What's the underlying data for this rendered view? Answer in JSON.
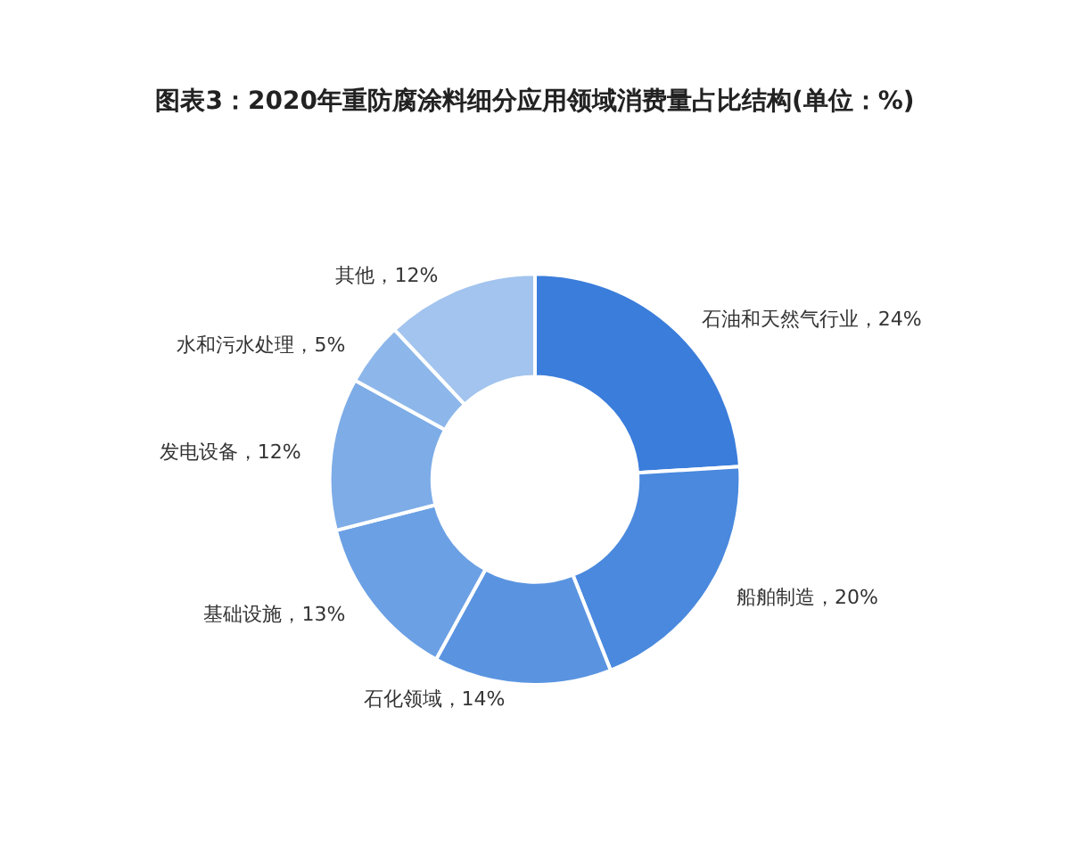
{
  "chart_data": {
    "type": "donut",
    "title": "图表3：2020年重防腐涂料细分应用领域消费量占比结构(单位：%)",
    "categories": [
      "石油和天然气行业",
      "船舶制造",
      "石化领域",
      "基础设施",
      "发电设备",
      "水和污水处理",
      "其他"
    ],
    "values": [
      24,
      20,
      14,
      13,
      12,
      5,
      12
    ],
    "value_labels": [
      "24%",
      "20%",
      "14%",
      "13%",
      "12%",
      "5%",
      "12%"
    ],
    "colors": [
      "#3b7ddb",
      "#4a89de",
      "#5a94e1",
      "#6ba0e4",
      "#7dace7",
      "#8db7ea",
      "#a2c4ee"
    ],
    "legend": false
  }
}
